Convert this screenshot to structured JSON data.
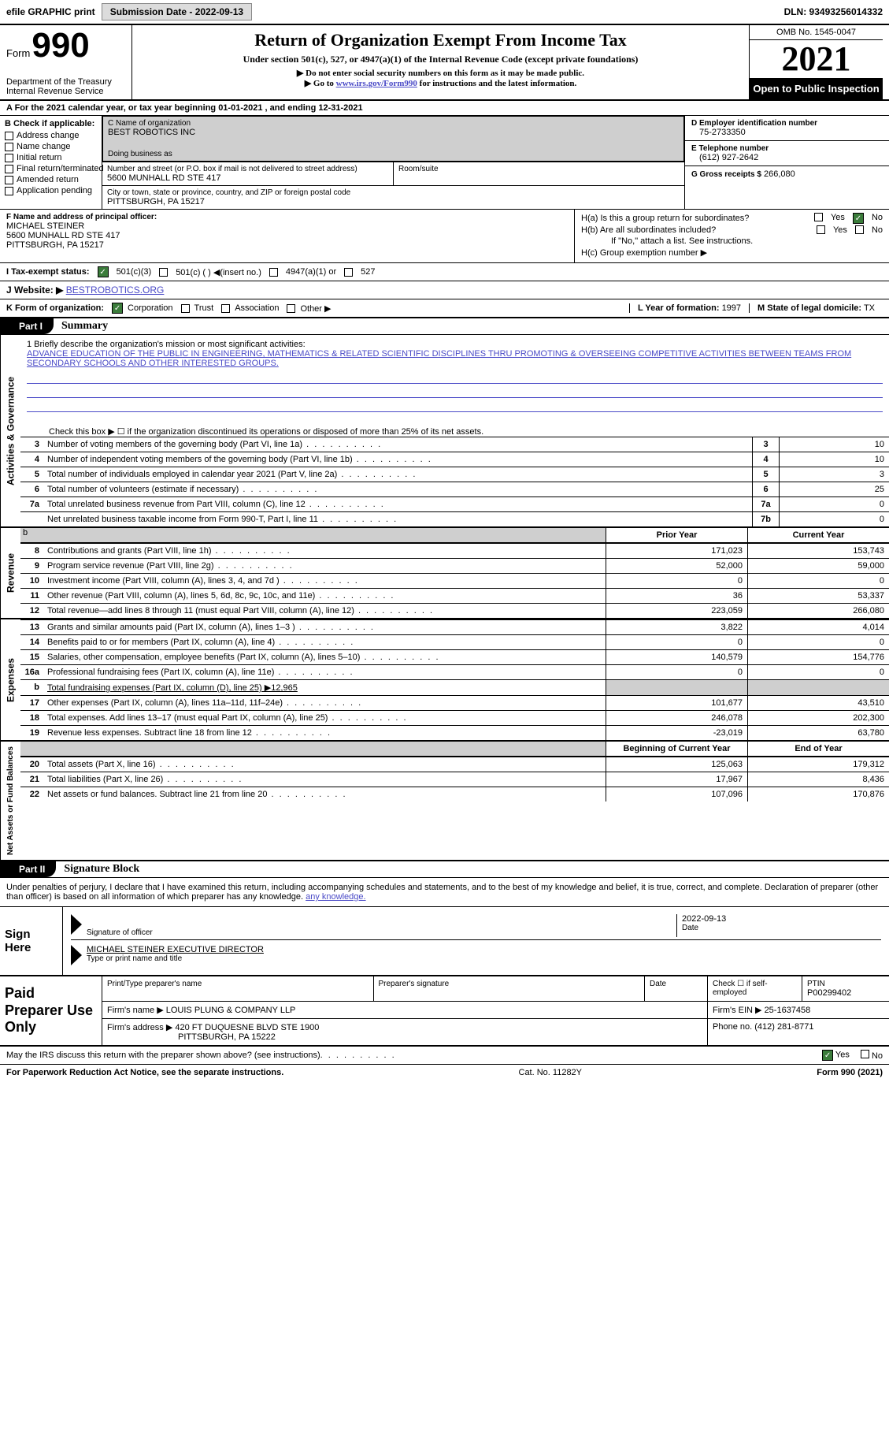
{
  "topbar": {
    "efile": "efile GRAPHIC print",
    "submission": "Submission Date - 2022-09-13",
    "dln": "DLN: 93493256014332"
  },
  "header": {
    "form_label": "Form",
    "form_num": "990",
    "dept": "Department of the Treasury\nInternal Revenue Service",
    "title": "Return of Organization Exempt From Income Tax",
    "sub": "Under section 501(c), 527, or 4947(a)(1) of the Internal Revenue Code (except private foundations)",
    "note1": "▶ Do not enter social security numbers on this form as it may be made public.",
    "note2_pre": "▶ Go to ",
    "note2_link": "www.irs.gov/Form990",
    "note2_post": " for instructions and the latest information.",
    "omb": "OMB No. 1545-0047",
    "year": "2021",
    "open": "Open to Public Inspection"
  },
  "calyear": "A For the 2021 calendar year, or tax year beginning 01-01-2021   , and ending 12-31-2021",
  "b": {
    "hdr": "B Check if applicable:",
    "items": [
      "Address change",
      "Name change",
      "Initial return",
      "Final return/terminated",
      "Amended return",
      "Application pending"
    ]
  },
  "c": {
    "name_lbl": "C Name of organization",
    "name_val": "BEST ROBOTICS INC",
    "dba_lbl": "Doing business as",
    "addr_lbl": "Number and street (or P.O. box if mail is not delivered to street address)",
    "addr_val": "5600 MUNHALL RD STE 417",
    "room_lbl": "Room/suite",
    "city_lbl": "City or town, state or province, country, and ZIP or foreign postal code",
    "city_val": "PITTSBURGH, PA  15217"
  },
  "d": {
    "ein_lbl": "D Employer identification number",
    "ein_val": "75-2733350",
    "tel_lbl": "E Telephone number",
    "tel_val": "(612) 927-2642",
    "gross_lbl": "G Gross receipts $",
    "gross_val": "266,080"
  },
  "f": {
    "lbl": "F  Name and address of principal officer:",
    "name": "MICHAEL STEINER",
    "addr1": "5600 MUNHALL RD STE 417",
    "addr2": "PITTSBURGH, PA  15217"
  },
  "h": {
    "ha": "H(a)  Is this a group return for subordinates?",
    "hb": "H(b)  Are all subordinates included?",
    "hb_note": "If \"No,\" attach a list. See instructions.",
    "hc": "H(c)  Group exemption number ▶"
  },
  "i": {
    "lbl": "I    Tax-exempt status:",
    "o1": "501(c)(3)",
    "o2": "501(c) (  ) ◀(insert no.)",
    "o3": "4947(a)(1) or",
    "o4": "527"
  },
  "j": {
    "lbl": "J   Website: ▶",
    "val": "BESTROBOTICS.ORG"
  },
  "k": {
    "lbl": "K Form of organization:",
    "o1": "Corporation",
    "o2": "Trust",
    "o3": "Association",
    "o4": "Other ▶",
    "l_lbl": "L Year of formation:",
    "l_val": "1997",
    "m_lbl": "M State of legal domicile:",
    "m_val": "TX"
  },
  "part1": {
    "tab": "Part I",
    "title": "Summary"
  },
  "mission": {
    "lbl": "1    Briefly describe the organization's mission or most significant activities:",
    "text": "ADVANCE EDUCATION OF THE PUBLIC IN ENGINEERING, MATHEMATICS & RELATED SCIENTIFIC DISCIPLINES THRU PROMOTING & OVERSEEING COMPETITIVE ACTIVITIES BETWEEN TEAMS FROM SECONDARY SCHOOLS AND OTHER INTERESTED GROUPS."
  },
  "vtabs": {
    "ag": "Activities & Governance",
    "rev": "Revenue",
    "exp": "Expenses",
    "net": "Net Assets or Fund Balances"
  },
  "gov": {
    "l2": "Check this box ▶ ☐  if the organization discontinued its operations or disposed of more than 25% of its net assets.",
    "rows": [
      {
        "n": "3",
        "l": "Number of voting members of the governing body (Part VI, line 1a)",
        "b": "3",
        "v": "10"
      },
      {
        "n": "4",
        "l": "Number of independent voting members of the governing body (Part VI, line 1b)",
        "b": "4",
        "v": "10"
      },
      {
        "n": "5",
        "l": "Total number of individuals employed in calendar year 2021 (Part V, line 2a)",
        "b": "5",
        "v": "3"
      },
      {
        "n": "6",
        "l": "Total number of volunteers (estimate if necessary)",
        "b": "6",
        "v": "25"
      },
      {
        "n": "7a",
        "l": "Total unrelated business revenue from Part VIII, column (C), line 12",
        "b": "7a",
        "v": "0"
      },
      {
        "n": "",
        "l": "Net unrelated business taxable income from Form 990-T, Part I, line 11",
        "b": "7b",
        "v": "0"
      }
    ]
  },
  "revhdr": {
    "c1": "Prior Year",
    "c2": "Current Year"
  },
  "revrows": [
    {
      "n": "8",
      "l": "Contributions and grants (Part VIII, line 1h)",
      "c1": "171,023",
      "c2": "153,743"
    },
    {
      "n": "9",
      "l": "Program service revenue (Part VIII, line 2g)",
      "c1": "52,000",
      "c2": "59,000"
    },
    {
      "n": "10",
      "l": "Investment income (Part VIII, column (A), lines 3, 4, and 7d )",
      "c1": "0",
      "c2": "0"
    },
    {
      "n": "11",
      "l": "Other revenue (Part VIII, column (A), lines 5, 6d, 8c, 9c, 10c, and 11e)",
      "c1": "36",
      "c2": "53,337"
    },
    {
      "n": "12",
      "l": "Total revenue—add lines 8 through 11 (must equal Part VIII, column (A), line 12)",
      "c1": "223,059",
      "c2": "266,080"
    }
  ],
  "exprows": [
    {
      "n": "13",
      "l": "Grants and similar amounts paid (Part IX, column (A), lines 1–3 )",
      "c1": "3,822",
      "c2": "4,014"
    },
    {
      "n": "14",
      "l": "Benefits paid to or for members (Part IX, column (A), line 4)",
      "c1": "0",
      "c2": "0"
    },
    {
      "n": "15",
      "l": "Salaries, other compensation, employee benefits (Part IX, column (A), lines 5–10)",
      "c1": "140,579",
      "c2": "154,776"
    },
    {
      "n": "16a",
      "l": "Professional fundraising fees (Part IX, column (A), line 11e)",
      "c1": "0",
      "c2": "0"
    },
    {
      "n": "b",
      "l": "Total fundraising expenses (Part IX, column (D), line 25) ▶12,965",
      "grey": true
    },
    {
      "n": "17",
      "l": "Other expenses (Part IX, column (A), lines 11a–11d, 11f–24e)",
      "c1": "101,677",
      "c2": "43,510"
    },
    {
      "n": "18",
      "l": "Total expenses. Add lines 13–17 (must equal Part IX, column (A), line 25)",
      "c1": "246,078",
      "c2": "202,300"
    },
    {
      "n": "19",
      "l": "Revenue less expenses. Subtract line 18 from line 12",
      "c1": "-23,019",
      "c2": "63,780"
    }
  ],
  "nethdr": {
    "c1": "Beginning of Current Year",
    "c2": "End of Year"
  },
  "netrows": [
    {
      "n": "20",
      "l": "Total assets (Part X, line 16)",
      "c1": "125,063",
      "c2": "179,312"
    },
    {
      "n": "21",
      "l": "Total liabilities (Part X, line 26)",
      "c1": "17,967",
      "c2": "8,436"
    },
    {
      "n": "22",
      "l": "Net assets or fund balances. Subtract line 21 from line 20",
      "c1": "107,096",
      "c2": "170,876"
    }
  ],
  "part2": {
    "tab": "Part II",
    "title": "Signature Block"
  },
  "sigtext": "Under penalties of perjury, I declare that I have examined this return, including accompanying schedules and statements, and to the best of my knowledge and belief, it is true, correct, and complete. Declaration of preparer (other than officer) is based on all information of which preparer has any knowledge.",
  "sign": {
    "hdr": "Sign Here",
    "sig_lbl": "Signature of officer",
    "date_lbl": "Date",
    "date_val": "2022-09-13",
    "name_val": "MICHAEL STEINER  EXECUTIVE DIRECTOR",
    "name_lbl": "Type or print name and title"
  },
  "prep": {
    "hdr": "Paid Preparer Use Only",
    "p1": "Print/Type preparer's name",
    "p2": "Preparer's signature",
    "p3": "Date",
    "p4": "Check ☐ if self-employed",
    "p5_lbl": "PTIN",
    "p5_val": "P00299402",
    "firm_lbl": "Firm's name   ▶",
    "firm_val": "LOUIS PLUNG & COMPANY LLP",
    "ein_lbl": "Firm's EIN ▶",
    "ein_val": "25-1637458",
    "addr_lbl": "Firm's address ▶",
    "addr_val": "420 FT DUQUESNE BLVD STE 1900",
    "addr_val2": "PITTSBURGH, PA  15222",
    "phone_lbl": "Phone no.",
    "phone_val": "(412) 281-8771"
  },
  "bottom": {
    "q": "May the IRS discuss this return with the preparer shown above? (see instructions)",
    "yes": "Yes",
    "no": "No"
  },
  "footer": {
    "l": "For Paperwork Reduction Act Notice, see the separate instructions.",
    "m": "Cat. No. 11282Y",
    "r": "Form 990 (2021)"
  }
}
